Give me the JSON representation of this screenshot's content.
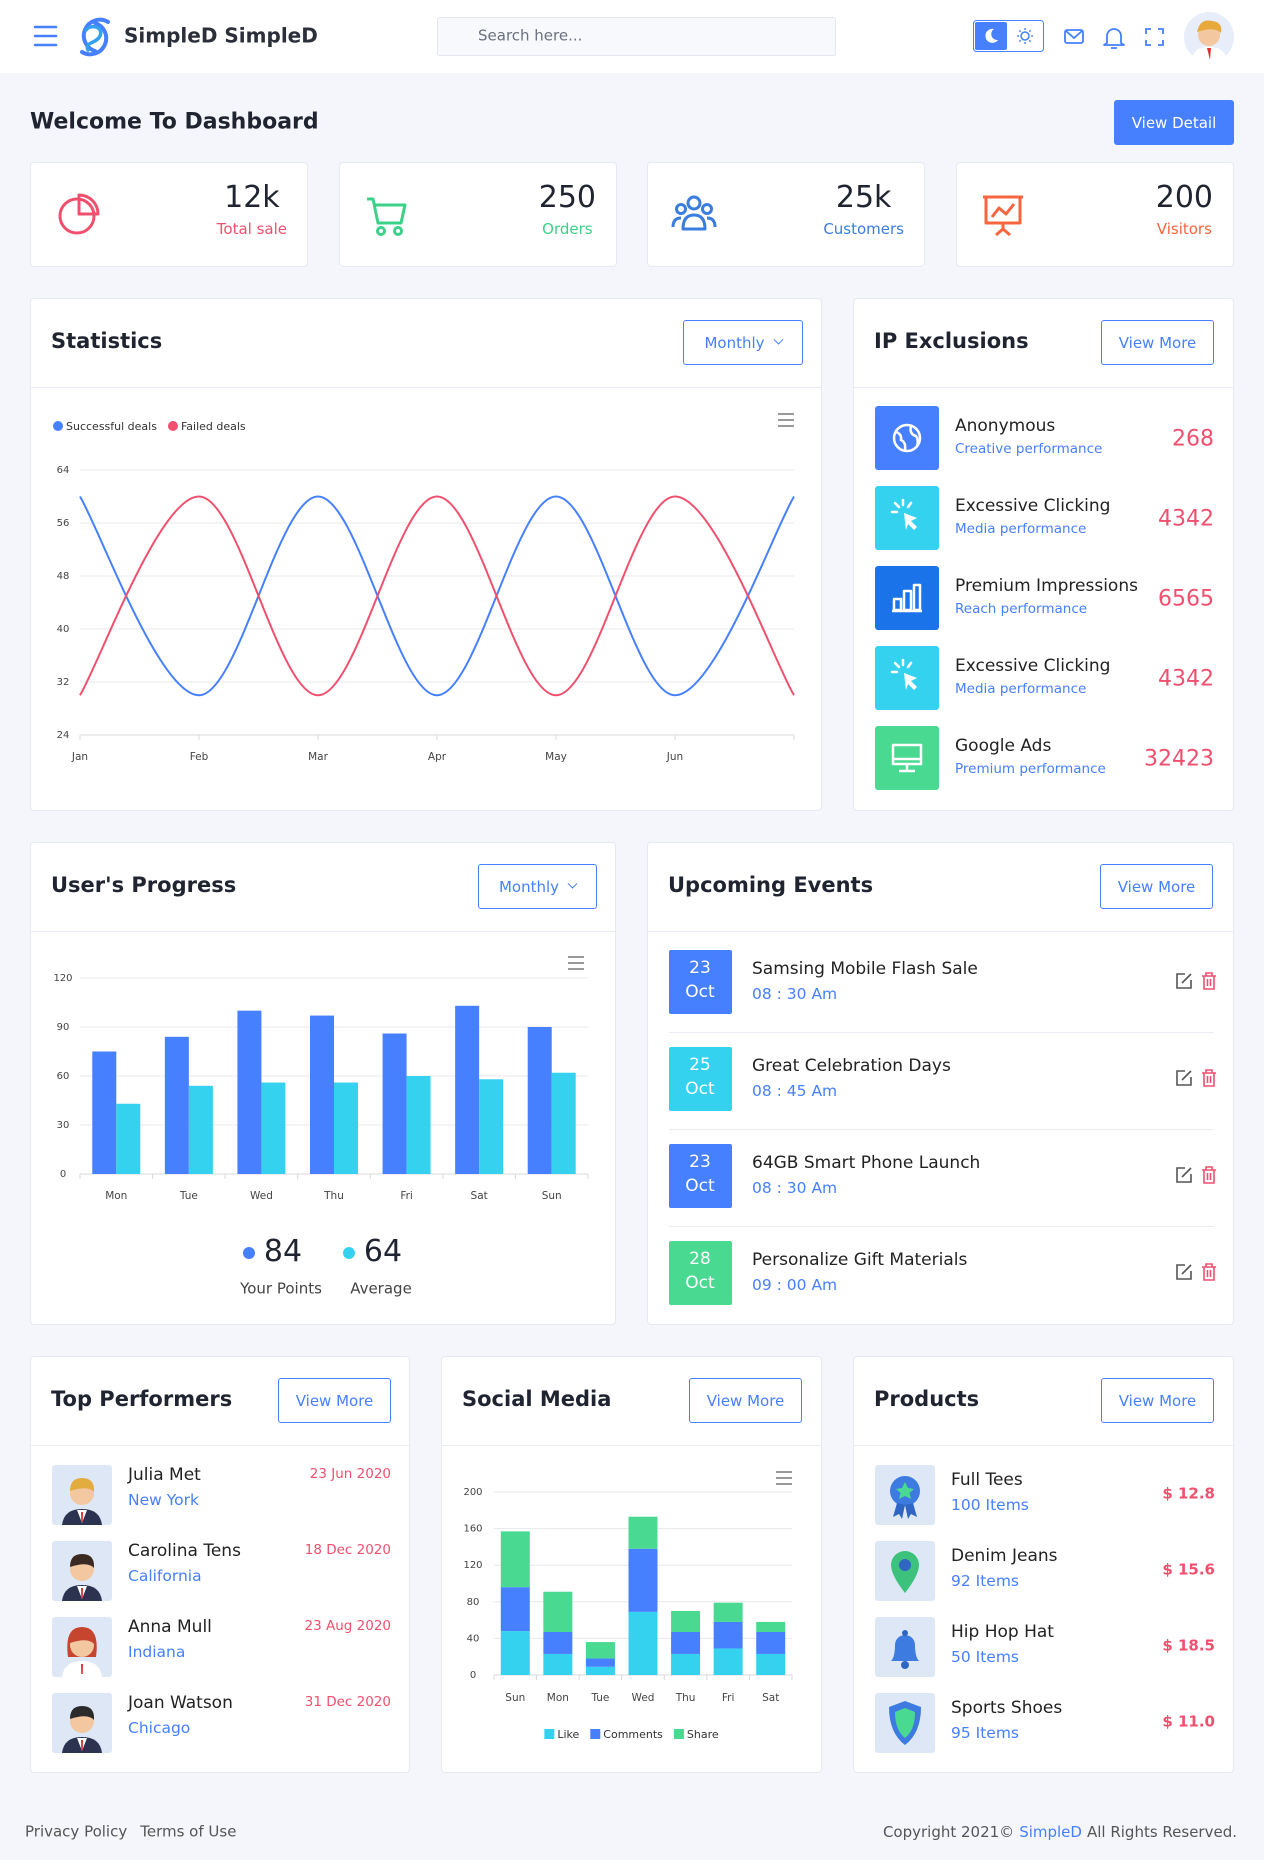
{
  "header": {
    "brand": "SimpleD SimpleD",
    "search_placeholder": "Search here..."
  },
  "welcome": {
    "title": "Welcome To Dashboard",
    "button": "View Detail"
  },
  "stats": [
    {
      "value": "12k",
      "label": "Total sale",
      "color": "#f0506e"
    },
    {
      "value": 250,
      "label": "Orders",
      "color": "#3cd188"
    },
    {
      "value": "25k",
      "label": "Customers",
      "color": "#3b7ddd"
    },
    {
      "value": 200,
      "label": "Visitors",
      "color": "#f7653e"
    }
  ],
  "ip_exclusions": {
    "title": "IP Exclusions",
    "button": "View More",
    "items": [
      {
        "title": "Anonymous",
        "subtitle": "Creative performance",
        "value": 268,
        "color": "#4680ff"
      },
      {
        "title": "Excessive Clicking",
        "subtitle": "Media performance",
        "value": 4342,
        "color": "#35d2f0"
      },
      {
        "title": "Premium Impressions",
        "subtitle": "Reach performance",
        "value": 6565,
        "color": "#1a73e8"
      },
      {
        "title": "Excessive Clicking",
        "subtitle": "Media performance",
        "value": 4342,
        "color": "#35d2f0"
      },
      {
        "title": "Google Ads",
        "subtitle": "Premium performance",
        "value": 32423,
        "color": "#4ad991"
      }
    ]
  },
  "events": {
    "title": "Upcoming Events",
    "button": "View More",
    "items": [
      {
        "day": 23,
        "month": "Oct",
        "title": "Samsing Mobile Flash Sale",
        "time": "08 : 30 Am",
        "color": "#4680ff"
      },
      {
        "day": 25,
        "month": "Oct",
        "title": "Great Celebration Days",
        "time": "08 : 45 Am",
        "color": "#35d2f0"
      },
      {
        "day": 23,
        "month": "Oct",
        "title": "64GB Smart Phone Launch",
        "time": "08 : 30 Am",
        "color": "#4680ff"
      },
      {
        "day": 28,
        "month": "Oct",
        "title": "Personalize Gift Materials",
        "time": "09 : 00 Am",
        "color": "#4ad991"
      }
    ]
  },
  "top_performers": {
    "title": "Top Performers",
    "button": "View More",
    "items": [
      {
        "name": "Julia Met",
        "location": "New York",
        "date": "23 Jun 2020"
      },
      {
        "name": "Carolina Tens",
        "location": "California",
        "date": "18 Dec 2020"
      },
      {
        "name": "Anna Mull",
        "location": "Indiana",
        "date": "23 Aug 2020"
      },
      {
        "name": "Joan Watson",
        "location": "Chicago",
        "date": "31 Dec 2020"
      }
    ]
  },
  "products": {
    "title": "Products",
    "button": "View More",
    "items": [
      {
        "name": "Full Tees",
        "items": "100 Items",
        "price": "$ 12.8"
      },
      {
        "name": "Denim Jeans",
        "items": "92 Items",
        "price": "$ 15.6"
      },
      {
        "name": "Hip Hop Hat",
        "items": "50 Items",
        "price": "$ 18.5"
      },
      {
        "name": "Sports Shoes",
        "items": "95 Items",
        "price": "$ 11.0"
      }
    ]
  },
  "footer": {
    "links": [
      "Privacy Policy",
      "Terms of Use"
    ],
    "copyright": [
      "Copyright 2021©",
      "SimpleD",
      "All Rights Reserved."
    ]
  },
  "chart_data": [
    {
      "type": "line",
      "title": "Statistics",
      "dropdown": "Monthly",
      "smooth": true,
      "grid": true,
      "legend": "top-left",
      "categories": [
        "Jan",
        "Feb",
        "Mar",
        "Apr",
        "May",
        "Jun",
        null
      ],
      "series": [
        {
          "name": "Successful deals",
          "color": "#4680ff",
          "values": [
            60,
            30,
            60,
            30,
            60,
            30,
            60
          ]
        },
        {
          "name": "Failed deals",
          "color": "#f0506e",
          "values": [
            30,
            60,
            30,
            60,
            30,
            60,
            30
          ]
        }
      ],
      "ylim": [
        24,
        64
      ],
      "yticks": [
        24,
        32,
        40,
        48,
        56,
        64
      ]
    },
    {
      "type": "bar",
      "title": "User's Progress",
      "dropdown": "Monthly",
      "grid": true,
      "categories": [
        "Mon",
        "Tue",
        "Wed",
        "Thu",
        "Fri",
        "Sat",
        "Sun"
      ],
      "series": [
        {
          "color": "#4680ff",
          "values": [
            75,
            84,
            100,
            97,
            86,
            103,
            90
          ]
        },
        {
          "color": "#35d2f0",
          "values": [
            43,
            54,
            56,
            56,
            60,
            58,
            62
          ]
        }
      ],
      "ylim": [
        0,
        120
      ],
      "yticks": [
        0,
        30,
        60,
        90,
        120
      ],
      "summary": [
        {
          "value": 84,
          "label": "Your Points",
          "color": "#4680ff"
        },
        {
          "value": 64,
          "label": "Average",
          "color": "#35d2f0"
        }
      ]
    },
    {
      "type": "stacked_bar",
      "title": "Social Media",
      "button": "View More",
      "grid": true,
      "legend": "bottom",
      "categories": [
        "Sun",
        "Mon",
        "Tue",
        "Wed",
        "Thu",
        "Fri",
        "Sat"
      ],
      "series": [
        {
          "name": "Like",
          "color": "#35d2f0",
          "values": [
            48,
            23,
            9,
            69,
            23,
            29,
            23
          ]
        },
        {
          "name": "Comments",
          "color": "#4680ff",
          "values": [
            48,
            24,
            9,
            69,
            24,
            29,
            24
          ]
        },
        {
          "name": "Share",
          "color": "#4ad991",
          "values": [
            61,
            44,
            18,
            35,
            23,
            21,
            11
          ]
        }
      ],
      "ylim": [
        0,
        200
      ],
      "yticks": [
        0,
        40,
        80,
        120,
        160,
        200
      ]
    }
  ]
}
